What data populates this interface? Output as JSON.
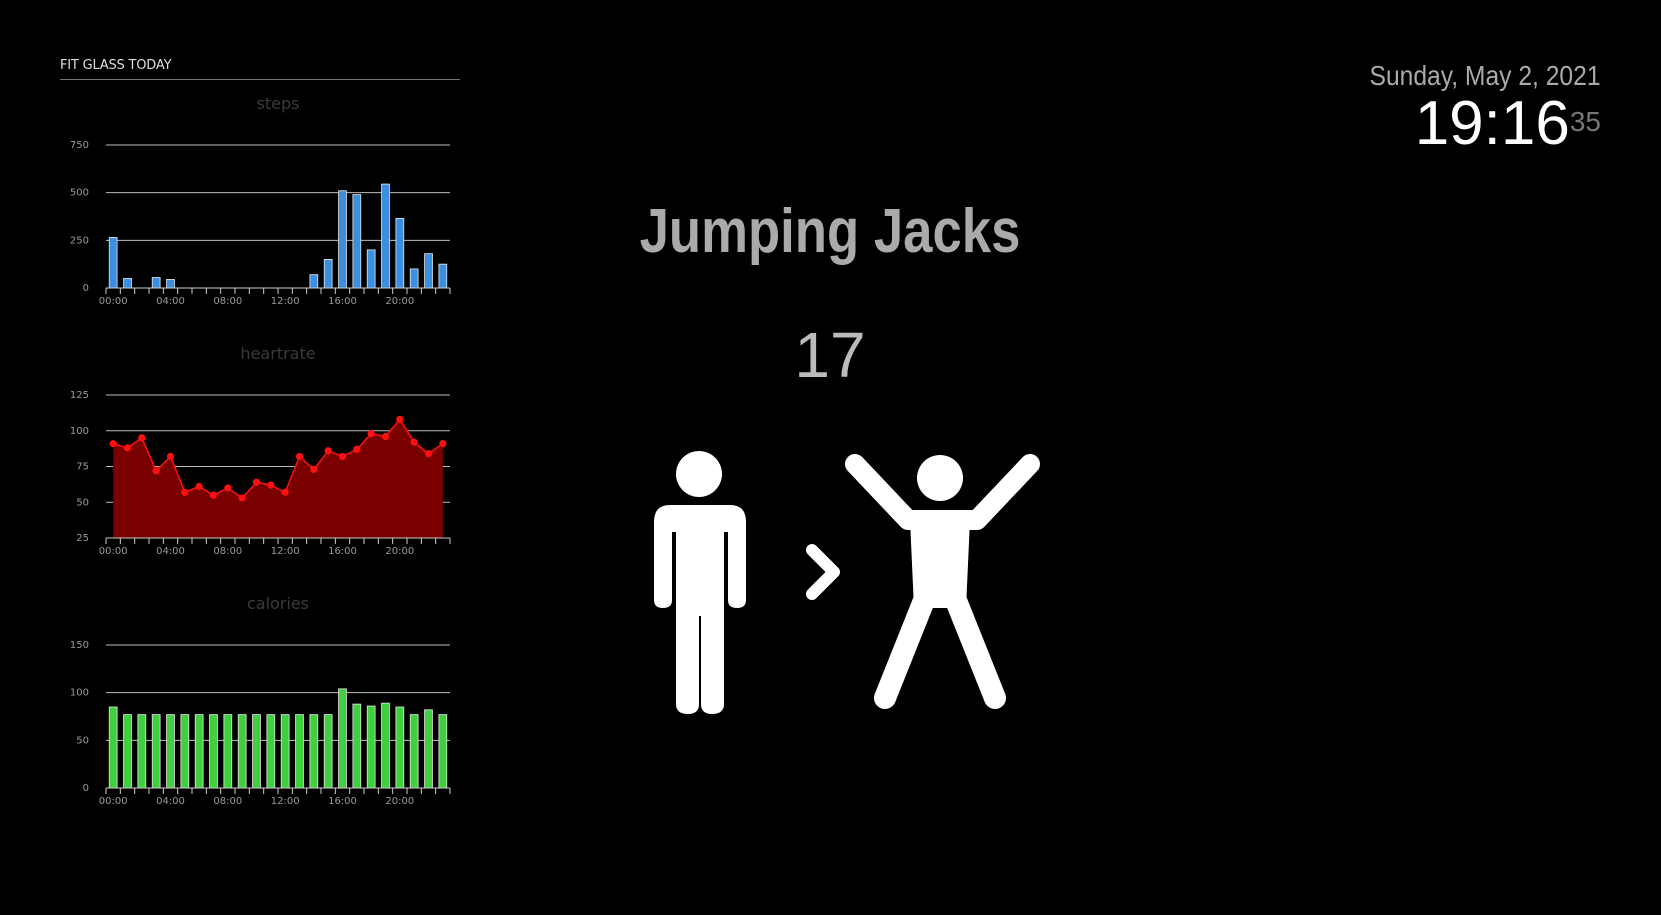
{
  "header": {
    "title": "FIT GLASS TODAY"
  },
  "clock": {
    "date": "Sunday, May 2, 2021",
    "time": "19:16",
    "seconds": "35"
  },
  "exercise": {
    "name": "Jumping Jacks",
    "count": "17"
  },
  "icons": {
    "standing": "standing-person-icon",
    "arrow": "chevron-right-icon",
    "jumping": "jumping-person-icon"
  },
  "chart_data": [
    {
      "type": "bar",
      "title": "steps",
      "color": "#3b8fe0",
      "x_ticks": [
        "00:00",
        "04:00",
        "08:00",
        "12:00",
        "16:00",
        "20:00"
      ],
      "y_ticks": [
        0,
        250,
        500,
        750
      ],
      "ylim": [
        0,
        750
      ],
      "categories": [
        0,
        1,
        2,
        3,
        4,
        5,
        6,
        7,
        8,
        9,
        10,
        11,
        12,
        13,
        14,
        15,
        16,
        17,
        18,
        19,
        20,
        21,
        22,
        23
      ],
      "values": [
        265,
        50,
        0,
        55,
        45,
        0,
        0,
        0,
        0,
        0,
        0,
        0,
        0,
        0,
        70,
        150,
        510,
        490,
        200,
        545,
        365,
        100,
        180,
        125
      ],
      "grid": true
    },
    {
      "type": "area",
      "title": "heartrate",
      "color": "#ff1010",
      "fill": "#7a0000",
      "x_ticks": [
        "00:00",
        "04:00",
        "08:00",
        "12:00",
        "16:00",
        "20:00"
      ],
      "y_ticks": [
        25,
        50,
        75,
        100,
        125
      ],
      "ylim": [
        25,
        125
      ],
      "x": [
        0,
        1,
        2,
        3,
        4,
        5,
        6,
        7,
        8,
        9,
        10,
        11,
        12,
        13,
        14,
        15,
        16,
        17,
        18,
        19,
        20,
        21,
        22,
        23
      ],
      "values": [
        91,
        88,
        95,
        72,
        82,
        57,
        61,
        55,
        60,
        53,
        64,
        62,
        57,
        82,
        73,
        86,
        82,
        87,
        98,
        96,
        108,
        92,
        84,
        91
      ],
      "grid": true
    },
    {
      "type": "bar",
      "title": "calories",
      "color": "#3fcf3f",
      "x_ticks": [
        "00:00",
        "04:00",
        "08:00",
        "12:00",
        "16:00",
        "20:00"
      ],
      "y_ticks": [
        0,
        50,
        100,
        150
      ],
      "ylim": [
        0,
        150
      ],
      "categories": [
        0,
        1,
        2,
        3,
        4,
        5,
        6,
        7,
        8,
        9,
        10,
        11,
        12,
        13,
        14,
        15,
        16,
        17,
        18,
        19,
        20,
        21,
        22,
        23
      ],
      "values": [
        85,
        77,
        77,
        77,
        77,
        77,
        77,
        77,
        77,
        77,
        77,
        77,
        77,
        77,
        77,
        77,
        104,
        88,
        86,
        89,
        85,
        77,
        82,
        77
      ],
      "grid": true
    }
  ]
}
